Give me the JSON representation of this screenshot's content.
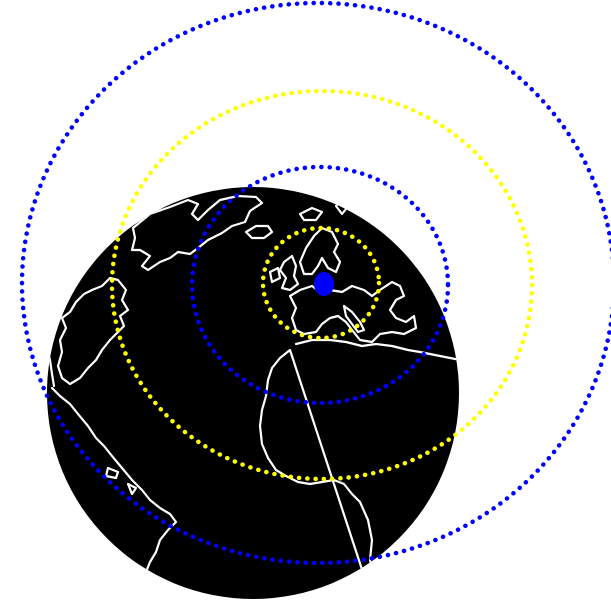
{
  "map": {
    "projection": "orthographic",
    "globe_color": "#000000",
    "coastline_color": "#ffffff",
    "background_color": "#ffffff",
    "center_marker": {
      "name": "center-point",
      "color": "#0000ff"
    },
    "rings": [
      {
        "name": "ring-1",
        "color": "#ffff00",
        "style": "dotted"
      },
      {
        "name": "ring-2",
        "color": "#0000ff",
        "style": "dotted"
      },
      {
        "name": "ring-3",
        "color": "#ffff00",
        "style": "dotted"
      },
      {
        "name": "ring-4",
        "color": "#0000ff",
        "style": "dotted"
      }
    ]
  }
}
